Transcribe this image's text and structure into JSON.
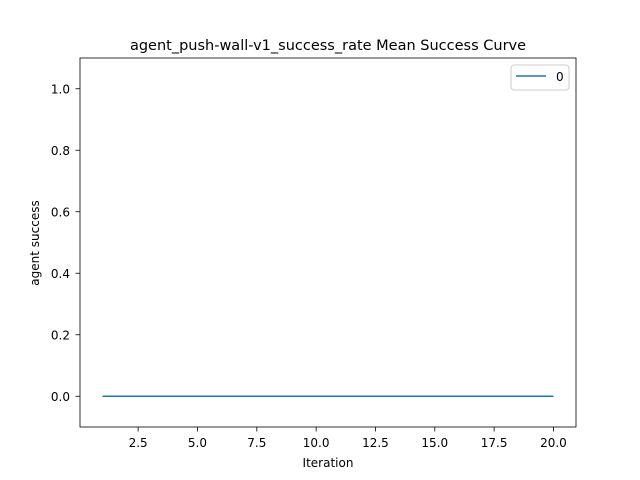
{
  "chart_data": {
    "type": "line",
    "title": "agent_push-wall-v1_success_rate Mean Success Curve",
    "xlabel": "Iteration",
    "ylabel": "agent success",
    "xlim": [
      0.05,
      20.95
    ],
    "ylim": [
      -0.1,
      1.1
    ],
    "xticks": [
      {
        "value": 2.5,
        "label": "2.5"
      },
      {
        "value": 5.0,
        "label": "5.0"
      },
      {
        "value": 7.5,
        "label": "7.5"
      },
      {
        "value": 10.0,
        "label": "10.0"
      },
      {
        "value": 12.5,
        "label": "12.5"
      },
      {
        "value": 15.0,
        "label": "15.0"
      },
      {
        "value": 17.5,
        "label": "17.5"
      },
      {
        "value": 20.0,
        "label": "20.0"
      }
    ],
    "yticks": [
      {
        "value": 0.0,
        "label": "0.0"
      },
      {
        "value": 0.2,
        "label": "0.2"
      },
      {
        "value": 0.4,
        "label": "0.4"
      },
      {
        "value": 0.6,
        "label": "0.6"
      },
      {
        "value": 0.8,
        "label": "0.8"
      },
      {
        "value": 1.0,
        "label": "1.0"
      }
    ],
    "grid": false,
    "legend_position": "top-right",
    "series": [
      {
        "name": "0",
        "color": "#1f77b4",
        "x": [
          1,
          2,
          3,
          4,
          5,
          6,
          7,
          8,
          9,
          10,
          11,
          12,
          13,
          14,
          15,
          16,
          17,
          18,
          19,
          20
        ],
        "y": [
          0,
          0,
          0,
          0,
          0,
          0,
          0,
          0,
          0,
          0,
          0,
          0,
          0,
          0,
          0,
          0,
          0,
          0,
          0,
          0
        ]
      }
    ]
  }
}
